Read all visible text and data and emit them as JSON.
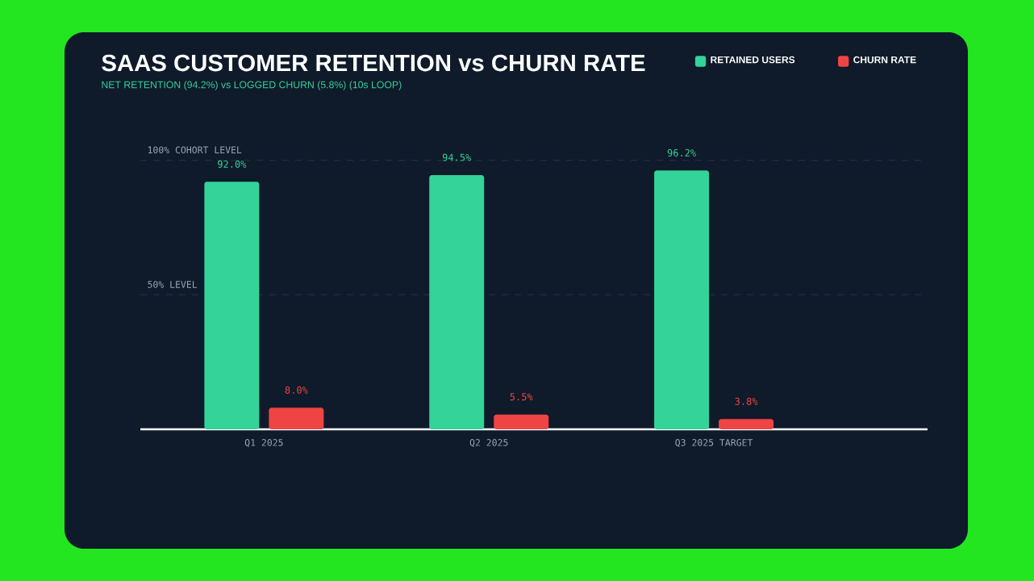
{
  "chart_data": {
    "type": "bar",
    "title": "SAAS CUSTOMER RETENTION vs CHURN RATE",
    "subtitle": "NET RETENTION (94.2%) vs LOGGED CHURN (5.8%) (10s LOOP)",
    "categories": [
      "Q1 2025",
      "Q2 2025",
      "Q3 2025 TARGET"
    ],
    "series": [
      {
        "name": "RETAINED USERS",
        "color": "#34d399",
        "values": [
          92.0,
          94.5,
          96.2
        ],
        "value_labels": [
          "92.0%",
          "94.5%",
          "96.2%"
        ]
      },
      {
        "name": "CHURN RATE",
        "color": "#ef4444",
        "values": [
          8.0,
          5.5,
          3.8
        ],
        "value_labels": [
          "8.0%",
          "5.5%",
          "3.8%"
        ]
      }
    ],
    "ylim": [
      0,
      100
    ],
    "ref_lines": [
      {
        "axis": "y",
        "value": 100,
        "label": "100% COHORT LEVEL"
      },
      {
        "axis": "y",
        "value": 50,
        "label": "50% LEVEL"
      }
    ],
    "legend": "top right",
    "tick_labels": "x"
  }
}
